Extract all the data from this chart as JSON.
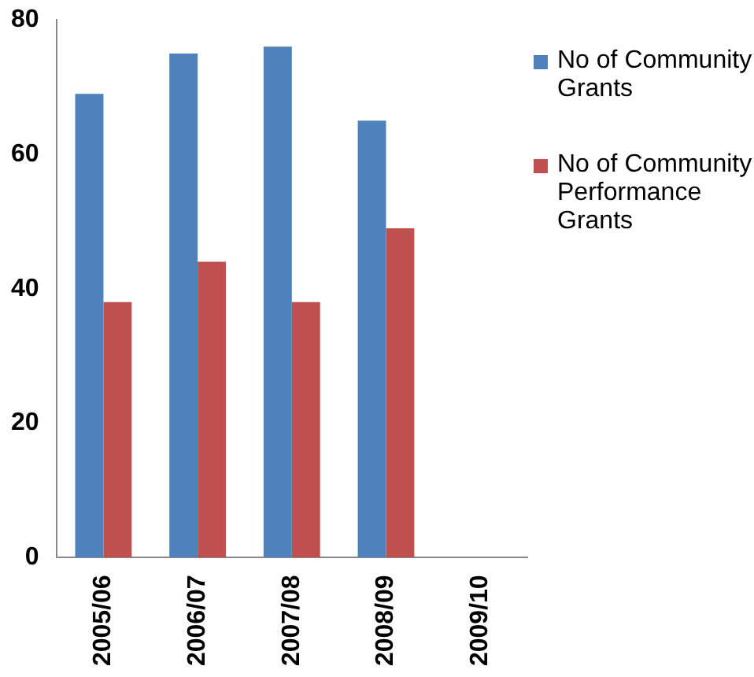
{
  "chart_data": {
    "type": "bar",
    "categories": [
      "2005/06",
      "2006/07",
      "2007/08",
      "2008/09",
      "2009/10"
    ],
    "series": [
      {
        "name": "No of Community Grants",
        "color": "#4f81bd",
        "values": [
          69,
          75,
          76,
          65,
          null
        ]
      },
      {
        "name": "No of Community Performance Grants",
        "color": "#c0504d",
        "values": [
          38,
          44,
          38,
          49,
          null
        ]
      }
    ],
    "ylim": [
      0,
      80
    ],
    "yticks": [
      0,
      20,
      40,
      60,
      80
    ],
    "grid": false,
    "legend": "right"
  }
}
